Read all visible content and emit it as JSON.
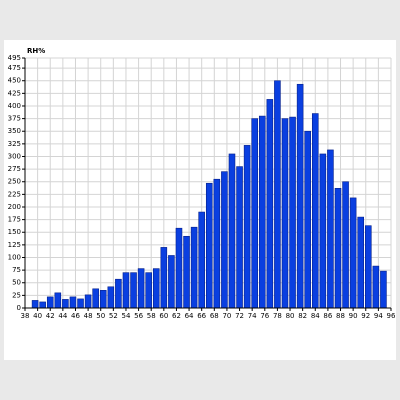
{
  "chart_data": {
    "type": "histogram",
    "ylabel": "RH%",
    "bins": [
      39.0,
      40.2,
      41.4,
      42.6,
      43.8,
      45.0,
      46.2,
      47.4,
      48.6,
      49.8,
      51.0,
      52.2,
      53.4,
      54.6,
      55.8,
      57.0,
      58.2,
      59.4,
      60.6,
      61.8,
      63.0,
      64.2,
      65.4,
      66.6,
      67.8,
      69.0,
      70.2,
      71.4,
      72.6,
      73.8,
      75.0,
      76.2,
      77.4,
      78.6,
      79.8,
      81.0,
      82.2,
      83.4,
      84.6,
      85.8,
      87.0,
      88.2,
      89.4,
      90.6,
      91.8,
      93.0,
      94.2,
      95.4
    ],
    "values": [
      15,
      12,
      22,
      30,
      17,
      22,
      18,
      26,
      38,
      35,
      42,
      57,
      70,
      70,
      78,
      70,
      78,
      120,
      104,
      158,
      142,
      160,
      190,
      247,
      255,
      270,
      305,
      280,
      322,
      375,
      380,
      413,
      450,
      375,
      378,
      443,
      350,
      385,
      305,
      313,
      237,
      250,
      218,
      180,
      163,
      83,
      73
    ],
    "color": "#0a3fe0",
    "xlim": [
      38,
      96
    ],
    "xticks": [
      38,
      40,
      42,
      44,
      46,
      48,
      50,
      52,
      54,
      56,
      58,
      60,
      62,
      64,
      66,
      68,
      70,
      72,
      74,
      76,
      78,
      80,
      82,
      84,
      86,
      88,
      90,
      92,
      94,
      96
    ],
    "ylim": [
      0,
      495
    ],
    "yticks": [
      0,
      25,
      50,
      75,
      100,
      125,
      150,
      175,
      200,
      225,
      250,
      275,
      300,
      325,
      350,
      375,
      400,
      425,
      450,
      475,
      495
    ],
    "grid": true
  }
}
